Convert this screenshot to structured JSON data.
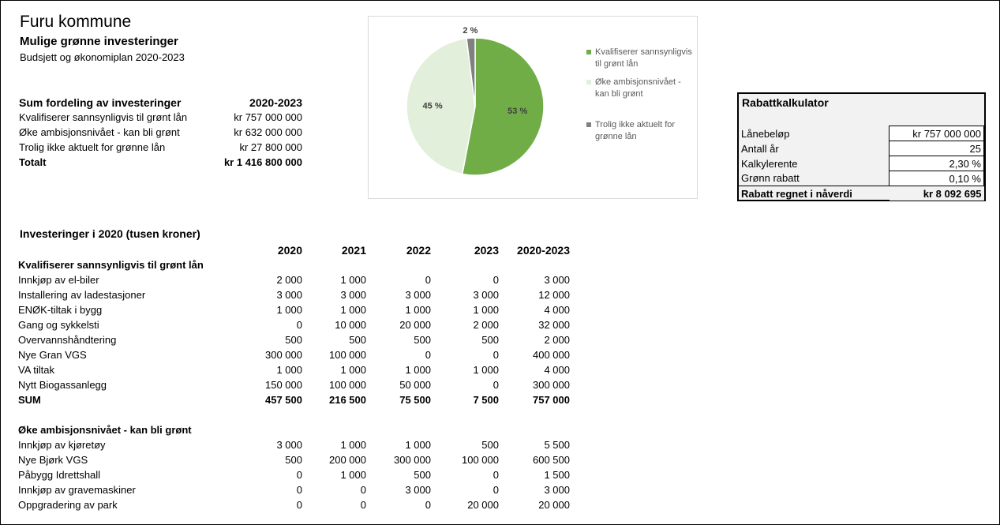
{
  "header": {
    "title": "Furu kommune",
    "subtitle": "Mulige grønne investeringer",
    "period": "Budsjett og økonomiplan 2020-2023"
  },
  "summary": {
    "heading": "Sum fordeling av investeringer",
    "period_label": "2020-2023",
    "rows": [
      {
        "label": "Kvalifiserer sannsynligvis til grønt lån",
        "value": "kr 757 000 000"
      },
      {
        "label": "Øke ambisjonsnivået - kan bli grønt",
        "value": "kr 632 000 000"
      },
      {
        "label": "Trolig ikke aktuelt for grønne lån",
        "value": "kr 27 800 000"
      }
    ],
    "total_label": "Totalt",
    "total_value": "kr 1 416 800 000"
  },
  "chart_data": {
    "type": "pie",
    "title": "",
    "slices": [
      {
        "label": "Kvalifiserer sannsynligvis til grønt lån",
        "value": 53,
        "display": "53 %",
        "color": "#70ad47"
      },
      {
        "label": "Øke ambisjonsnivået - kan bli grønt",
        "value": 45,
        "display": "45 %",
        "color": "#e2efda"
      },
      {
        "label": "Trolig ikke aktuelt for grønne lån",
        "value": 2,
        "display": "2 %",
        "color": "#808080"
      }
    ],
    "legend_position": "right"
  },
  "calculator": {
    "title": "Rabattkalkulator",
    "rows": [
      {
        "label": "Lånebeløp",
        "value": "kr 757 000 000"
      },
      {
        "label": "Antall år",
        "value": "25"
      },
      {
        "label": "Kalkylerente",
        "value": "2,30 %"
      },
      {
        "label": "Grønn rabatt",
        "value": "0,10 %"
      }
    ],
    "result_label": "Rabatt regnet i nåverdi",
    "result_value": "kr 8 092 695"
  },
  "investments": {
    "title": "Investeringer i 2020 (tusen kroner)",
    "years": [
      "2020",
      "2021",
      "2022",
      "2023",
      "2020-2023"
    ],
    "sections": [
      {
        "heading": "Kvalifiserer sannsynligvis til grønt lån",
        "rows": [
          {
            "label": "Innkjøp av el-biler",
            "values": [
              "2 000",
              "1 000",
              "0",
              "0",
              "3 000"
            ]
          },
          {
            "label": "Installering av ladestasjoner",
            "values": [
              "3 000",
              "3 000",
              "3 000",
              "3 000",
              "12 000"
            ]
          },
          {
            "label": "ENØK-tiltak i bygg",
            "values": [
              "1 000",
              "1 000",
              "1 000",
              "1 000",
              "4 000"
            ]
          },
          {
            "label": "Gang og sykkelsti",
            "values": [
              "0",
              "10 000",
              "20 000",
              "2 000",
              "32 000"
            ]
          },
          {
            "label": "Overvannshåndtering",
            "values": [
              "500",
              "500",
              "500",
              "500",
              "2 000"
            ]
          },
          {
            "label": "Nye Gran VGS",
            "values": [
              "300 000",
              "100 000",
              "0",
              "0",
              "400 000"
            ]
          },
          {
            "label": "VA tiltak",
            "values": [
              "1 000",
              "1 000",
              "1 000",
              "1 000",
              "4 000"
            ]
          },
          {
            "label": "Nytt Biogassanlegg",
            "values": [
              "150 000",
              "100 000",
              "50 000",
              "0",
              "300 000"
            ]
          }
        ],
        "sum": {
          "label": "SUM",
          "values": [
            "457 500",
            "216 500",
            "75 500",
            "7 500",
            "757 000"
          ]
        }
      },
      {
        "heading": "Øke ambisjonsnivået - kan bli grønt",
        "rows": [
          {
            "label": "Innkjøp av kjøretøy",
            "values": [
              "3 000",
              "1 000",
              "1 000",
              "500",
              "5 500"
            ]
          },
          {
            "label": "Nye Bjørk VGS",
            "values": [
              "500",
              "200 000",
              "300 000",
              "100 000",
              "600 500"
            ]
          },
          {
            "label": "Påbygg Idrettshall",
            "values": [
              "0",
              "1 000",
              "500",
              "0",
              "1 500"
            ]
          },
          {
            "label": "Innkjøp av gravemaskiner",
            "values": [
              "0",
              "0",
              "3 000",
              "0",
              "3 000"
            ]
          },
          {
            "label": "Oppgradering av park",
            "values": [
              "0",
              "0",
              "0",
              "20 000",
              "20 000"
            ]
          }
        ]
      }
    ]
  }
}
